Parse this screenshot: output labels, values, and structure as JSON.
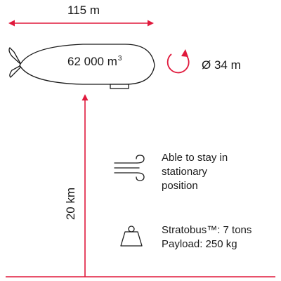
{
  "colors": {
    "accent": "#e0193c",
    "ink": "#1a1a1a",
    "background": "#ffffff"
  },
  "dimensions": {
    "length": "115 m",
    "volume": "62 000 m",
    "volume_superscript": "3",
    "diameter": "Ø 34 m",
    "altitude": "20 km"
  },
  "features": {
    "stationary": "Able to stay in\nstationary\nposition",
    "weight": "Stratobus™:  7 tons\nPayload: 250 kg"
  },
  "icons": {
    "rotation": "rotation-arrow-icon",
    "wind": "wind-icon",
    "weight": "weight-icon"
  }
}
